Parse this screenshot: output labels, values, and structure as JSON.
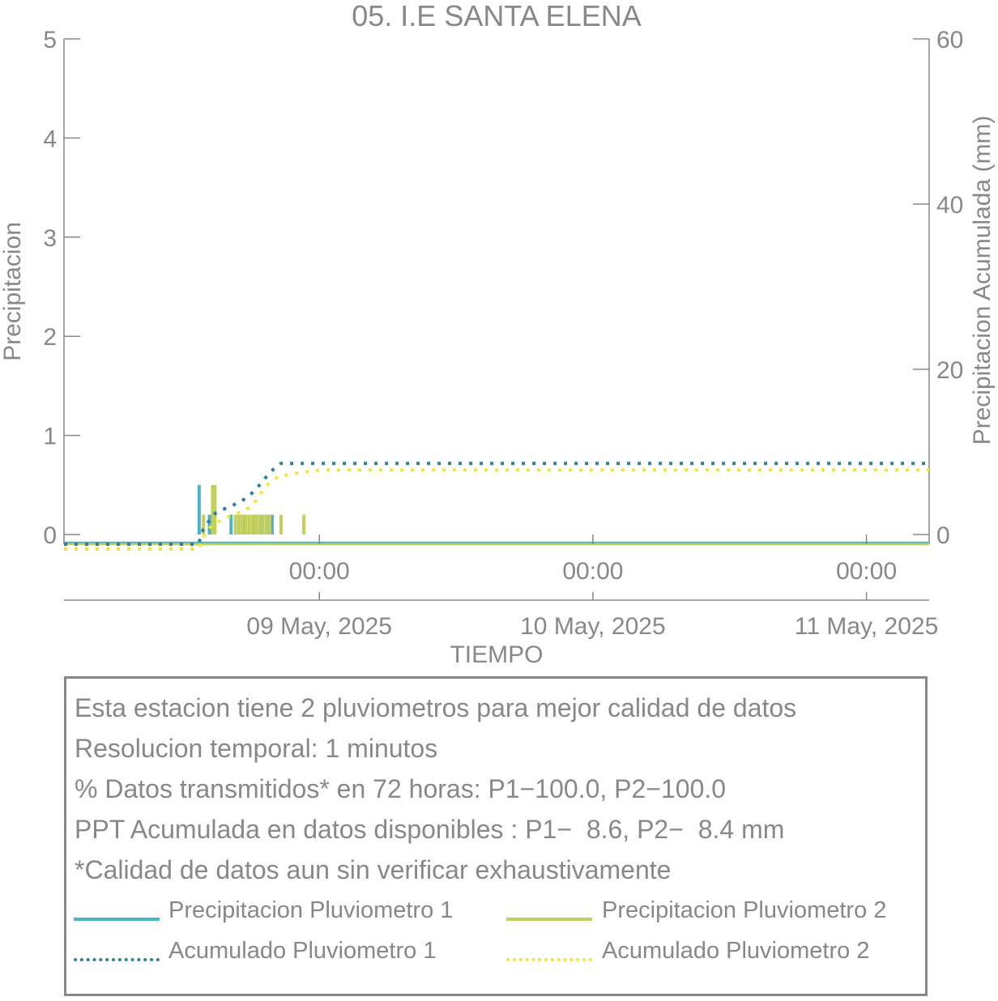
{
  "chart_data": {
    "type": "bar+line",
    "title": "05. I.E SANTA ELENA",
    "xlabel": "TIEMPO",
    "ylabel_left": "Precipitacion",
    "ylabel_right": "Precipitacion Acumulada (mm)",
    "ylim_left": [
      0,
      5
    ],
    "ylim_right": [
      0,
      60
    ],
    "yticks_left": [
      "0",
      "1",
      "2",
      "3",
      "4",
      "5"
    ],
    "yticks_right": [
      "0",
      "20",
      "40",
      "60"
    ],
    "x_range_hours": [
      -22.4,
      53.5
    ],
    "xticks": [
      {
        "hour": 0,
        "time": "00:00",
        "date": "09 May, 2025"
      },
      {
        "hour": 24,
        "time": "00:00",
        "date": "10 May, 2025"
      },
      {
        "hour": 48,
        "time": "00:00",
        "date": "11 May, 2025"
      }
    ],
    "series": [
      {
        "name": "Precipitacion Pluviometro 1",
        "kind": "bar",
        "color": "#4eb3c4",
        "points": [
          [
            -10.4,
            0.5
          ],
          [
            -9.5,
            0.2
          ],
          [
            -9.3,
            0.2
          ],
          [
            -7.6,
            0.2
          ],
          [
            -6.5,
            0.2
          ],
          [
            -5.6,
            0.2
          ],
          [
            -4.9,
            0.2
          ],
          [
            -4.4,
            0.2
          ],
          [
            -4.0,
            0.2
          ]
        ]
      },
      {
        "name": "Precipitacion Pluviometro 2",
        "kind": "bar",
        "color": "#c2cf5b",
        "points": [
          [
            -10.3,
            0.2
          ],
          [
            -9.5,
            0.5
          ],
          [
            -9.3,
            0.5
          ],
          [
            -7.5,
            0.2
          ],
          [
            -7.2,
            0.2
          ],
          [
            -6.9,
            0.2
          ],
          [
            -6.6,
            0.2
          ],
          [
            -6.3,
            0.2
          ],
          [
            -6.0,
            0.2
          ],
          [
            -5.7,
            0.2
          ],
          [
            -5.4,
            0.2
          ],
          [
            -5.1,
            0.2
          ],
          [
            -4.8,
            0.2
          ],
          [
            -4.5,
            0.2
          ],
          [
            -3.5,
            0.2
          ],
          [
            -1.5,
            0.2
          ]
        ]
      },
      {
        "name": "Acumulado Pluviometro 1",
        "kind": "line",
        "style": "dotted",
        "color": "#2f7e9c",
        "points": [
          [
            -22.4,
            0
          ],
          [
            -10.6,
            0
          ],
          [
            -10.2,
            0.6
          ],
          [
            -9.6,
            1.8
          ],
          [
            -9.1,
            2.6
          ],
          [
            -8.5,
            3.0
          ],
          [
            -7.5,
            3.6
          ],
          [
            -6.4,
            4.4
          ],
          [
            -5.6,
            5.4
          ],
          [
            -5.0,
            6.4
          ],
          [
            -4.4,
            7.4
          ],
          [
            -3.8,
            8.2
          ],
          [
            -3.4,
            8.6
          ],
          [
            53.5,
            8.6
          ]
        ]
      },
      {
        "name": "Acumulado Pluviometro 2",
        "kind": "line",
        "style": "dotted",
        "color": "#f2e63c",
        "points": [
          [
            -22.4,
            0
          ],
          [
            -10.6,
            0
          ],
          [
            -10.1,
            0.4
          ],
          [
            -9.6,
            1.4
          ],
          [
            -9.1,
            2.0
          ],
          [
            -8.4,
            2.4
          ],
          [
            -7.5,
            3.0
          ],
          [
            -6.4,
            3.6
          ],
          [
            -5.6,
            4.6
          ],
          [
            -5.0,
            5.8
          ],
          [
            -4.4,
            6.8
          ],
          [
            -3.6,
            7.6
          ],
          [
            -2.0,
            8.0
          ],
          [
            0.0,
            8.4
          ],
          [
            53.5,
            8.4
          ]
        ]
      }
    ]
  },
  "info": {
    "lines": [
      "Esta estacion tiene 2 pluviometros para mejor calidad de datos",
      "Resolucion temporal: 1 minutos",
      "% Datos transmitidos* en 72 horas: P1−100.0, P2−100.0",
      "PPT Acumulada en datos disponibles : P1−  8.6, P2−  8.4 mm",
      "*Calidad de datos aun sin verificar exhaustivamente"
    ]
  },
  "legend": [
    {
      "label": "Precipitacion Pluviometro 1",
      "color": "#4eb3c4",
      "style": "solid"
    },
    {
      "label": "Precipitacion Pluviometro 2",
      "color": "#c2cf5b",
      "style": "solid"
    },
    {
      "label": "Acumulado Pluviometro 1",
      "color": "#2f7e9c",
      "style": "dotted"
    },
    {
      "label": "Acumulado Pluviometro 2",
      "color": "#f2e63c",
      "style": "dotted"
    }
  ]
}
